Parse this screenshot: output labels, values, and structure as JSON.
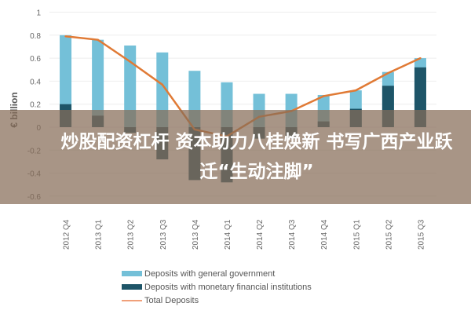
{
  "chart_data": {
    "type": "bar",
    "title": "",
    "xlabel": "",
    "ylabel": "€ billion",
    "ylim": [
      -0.6,
      1
    ],
    "yticks": [
      "1",
      "0.8",
      "0.6",
      "0.4",
      "0.2",
      "0",
      "-0.2",
      "-0.4",
      "-0.6"
    ],
    "grid": true,
    "legend_position": "bottom",
    "categories": [
      "2012 Q4",
      "2013 Q1",
      "2013 Q2",
      "2013 Q3",
      "2013 Q4",
      "2014 Q1",
      "2014 Q2",
      "2014 Q3",
      "2014 Q4",
      "2015 Q1",
      "2015 Q2",
      "2015 Q3"
    ],
    "series": [
      {
        "name": "Deposits with general government",
        "type": "bar",
        "color": "#74c0d8",
        "values": [
          0.8,
          0.76,
          0.71,
          0.65,
          0.49,
          0.39,
          0.29,
          0.29,
          0.28,
          0.32,
          0.48,
          0.6
        ]
      },
      {
        "name": "Deposits with monetary financial institutions",
        "type": "bar",
        "color": "#1e5568",
        "values": [
          0.2,
          0.1,
          -0.05,
          -0.28,
          -0.46,
          -0.48,
          -0.1,
          -0.1,
          0.05,
          0.16,
          0.36,
          0.52
        ]
      },
      {
        "name": "Total Deposits",
        "type": "line",
        "color": "#e07a35",
        "values": [
          0.79,
          0.76,
          0.57,
          0.37,
          -0.02,
          -0.08,
          0.09,
          0.14,
          0.27,
          0.32,
          0.47,
          0.6
        ]
      }
    ]
  },
  "banner": {
    "title": "炒股配资杠杆 资本助力八桂焕新 书写广西产业跃迁“生动注脚”"
  }
}
